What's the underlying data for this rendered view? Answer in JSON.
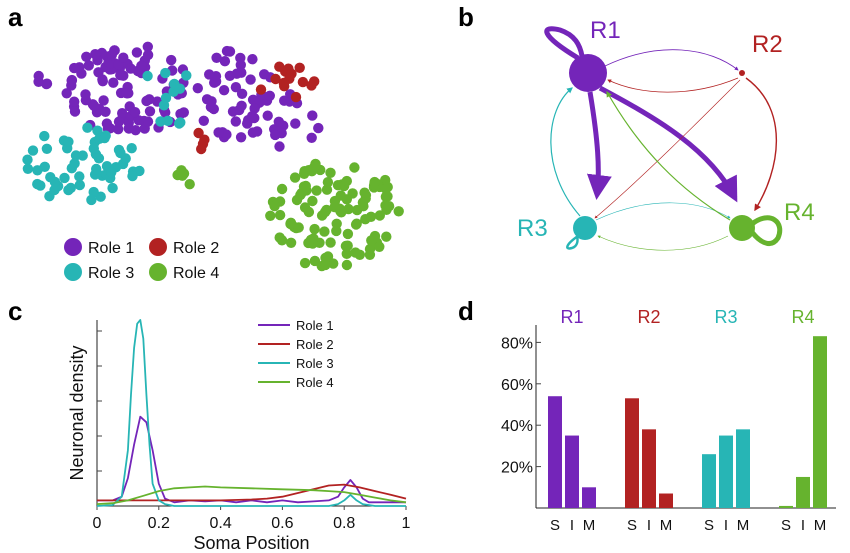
{
  "colors": {
    "role1": "#7425b9",
    "role2": "#b22222",
    "role3": "#27b5b5",
    "role4": "#66b32e"
  },
  "panels": {
    "a": "a",
    "b": "b",
    "c": "c",
    "d": "d"
  },
  "chart_data": [
    {
      "panel": "a",
      "type": "scatter",
      "legend": [
        "Role 1",
        "Role 2",
        "Role 3",
        "Role 4"
      ],
      "legend_placement": "bottom-left",
      "note": "unlabeled embedding of neurons colored by role"
    },
    {
      "panel": "b",
      "type": "network",
      "nodes": [
        "R1",
        "R2",
        "R3",
        "R4"
      ],
      "node_sizes": {
        "R1": 3,
        "R2": 0.5,
        "R3": 1.6,
        "R4": 1.9
      },
      "edges": [
        {
          "from": "R1",
          "to": "R1",
          "weight": 3
        },
        {
          "from": "R1",
          "to": "R3",
          "weight": 4
        },
        {
          "from": "R1",
          "to": "R4",
          "weight": 4
        },
        {
          "from": "R1",
          "to": "R2",
          "weight": 0.6
        },
        {
          "from": "R2",
          "to": "R1",
          "weight": 0.6
        },
        {
          "from": "R2",
          "to": "R4",
          "weight": 1
        },
        {
          "from": "R2",
          "to": "R3",
          "weight": 0.5
        },
        {
          "from": "R3",
          "to": "R1",
          "weight": 1
        },
        {
          "from": "R3",
          "to": "R3",
          "weight": 1.5
        },
        {
          "from": "R3",
          "to": "R4",
          "weight": 0.5
        },
        {
          "from": "R4",
          "to": "R1",
          "weight": 1
        },
        {
          "from": "R4",
          "to": "R3",
          "weight": 0.5
        },
        {
          "from": "R4",
          "to": "R4",
          "weight": 3
        }
      ]
    },
    {
      "panel": "c",
      "type": "line",
      "xlabel": "Soma Position",
      "ylabel": "Neuronal density",
      "xlim": [
        0,
        1
      ],
      "xticks": [
        "0",
        "0.2",
        "0.4",
        "0.6",
        "0.8",
        "1"
      ],
      "legend_placement": "top-right",
      "series": [
        {
          "name": "Role 1",
          "x": [
            0,
            0.05,
            0.08,
            0.1,
            0.12,
            0.14,
            0.16,
            0.18,
            0.2,
            0.22,
            0.25,
            0.3,
            0.35,
            0.4,
            0.45,
            0.5,
            0.55,
            0.6,
            0.65,
            0.7,
            0.75,
            0.78,
            0.8,
            0.82,
            0.84,
            0.86,
            0.88,
            0.9,
            0.95,
            1
          ],
          "y": [
            0.03,
            0.03,
            0.05,
            0.15,
            0.33,
            0.48,
            0.45,
            0.3,
            0.12,
            0.04,
            0.02,
            0.03,
            0.025,
            0.03,
            0.02,
            0.03,
            0.02,
            0.03,
            0.02,
            0.025,
            0.03,
            0.05,
            0.1,
            0.14,
            0.1,
            0.04,
            0.02,
            0.02,
            0.02,
            0.02
          ]
        },
        {
          "name": "Role 2",
          "x": [
            0,
            0.1,
            0.2,
            0.3,
            0.4,
            0.5,
            0.55,
            0.6,
            0.65,
            0.7,
            0.75,
            0.8,
            0.85,
            0.9,
            0.95,
            1
          ],
          "y": [
            0.03,
            0.03,
            0.03,
            0.03,
            0.03,
            0.035,
            0.04,
            0.05,
            0.07,
            0.09,
            0.11,
            0.115,
            0.1,
            0.08,
            0.06,
            0.04
          ]
        },
        {
          "name": "Role 3",
          "x": [
            0,
            0.05,
            0.08,
            0.1,
            0.11,
            0.12,
            0.13,
            0.14,
            0.15,
            0.16,
            0.17,
            0.18,
            0.2,
            0.22,
            0.25,
            0.3,
            0.5,
            0.75,
            0.78,
            0.8,
            0.82,
            0.84,
            0.86,
            0.9,
            1
          ],
          "y": [
            0,
            0.005,
            0.05,
            0.3,
            0.6,
            0.85,
            0.98,
            1.0,
            0.9,
            0.6,
            0.33,
            0.12,
            0.03,
            0.01,
            0,
            0,
            0,
            0,
            0.01,
            0.03,
            0.06,
            0.03,
            0.01,
            0,
            0
          ]
        },
        {
          "name": "Role 4",
          "x": [
            0,
            0.05,
            0.1,
            0.15,
            0.2,
            0.25,
            0.3,
            0.35,
            0.4,
            0.5,
            0.6,
            0.7,
            0.75,
            0.8,
            0.85,
            0.9,
            0.95,
            1
          ],
          "y": [
            0.01,
            0.015,
            0.03,
            0.055,
            0.08,
            0.095,
            0.1,
            0.105,
            0.1,
            0.095,
            0.09,
            0.085,
            0.08,
            0.075,
            0.06,
            0.045,
            0.03,
            0.02
          ]
        }
      ]
    },
    {
      "panel": "d",
      "type": "bar",
      "groups": [
        "R1",
        "R2",
        "R3",
        "R4"
      ],
      "categories": [
        "S",
        "I",
        "M"
      ],
      "yticks": [
        "20%",
        "40%",
        "60%",
        "80%"
      ],
      "ylim": [
        0,
        90
      ],
      "values": [
        [
          54,
          35,
          10
        ],
        [
          53,
          38,
          7
        ],
        [
          26,
          35,
          38
        ],
        [
          1,
          15,
          83
        ]
      ]
    }
  ]
}
